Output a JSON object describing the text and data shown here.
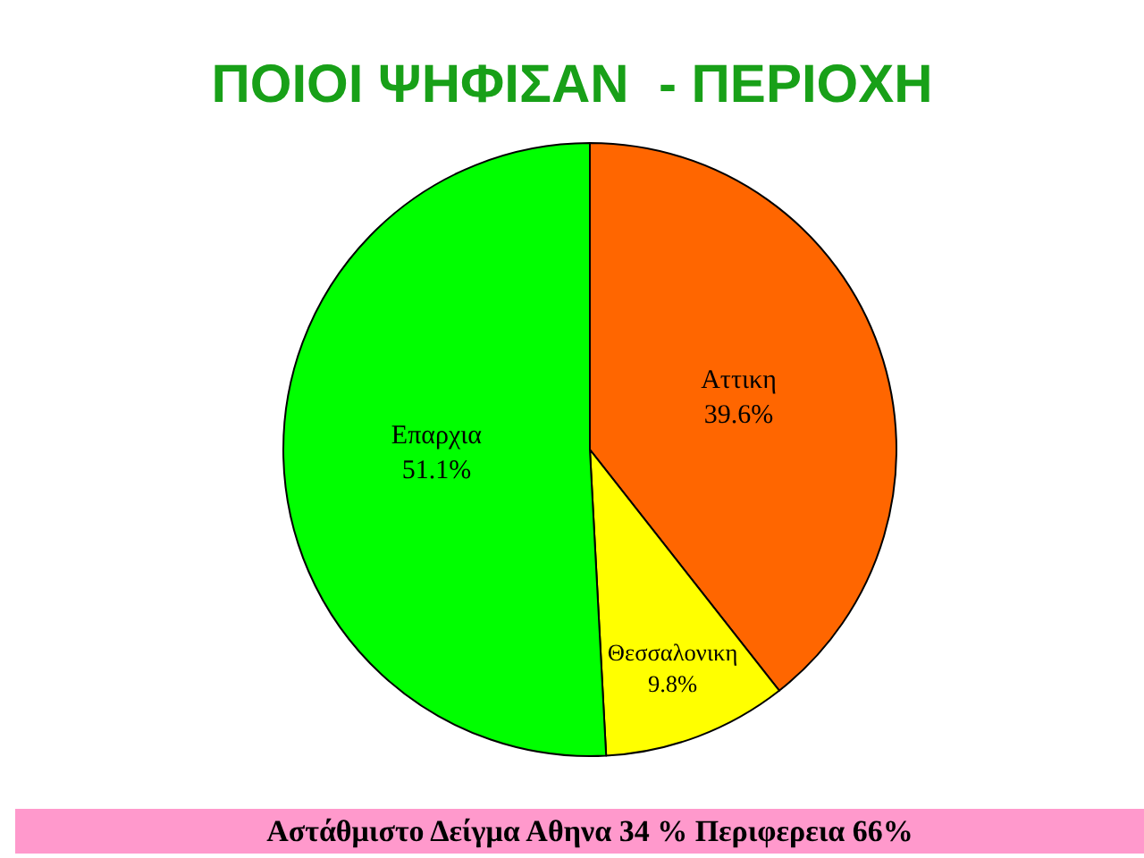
{
  "chart_data": {
    "type": "pie",
    "title": "ΠΟΙΟΙ ΨΗΦΙΣΑΝ  - ΠΕΡΙΟΧΗ",
    "categories": [
      "Αττικη",
      "Θεσσαλονικη",
      "Επαρχια"
    ],
    "values": [
      39.6,
      9.8,
      51.1
    ],
    "value_labels": [
      "39.6%",
      "9.8%",
      "51.1%"
    ],
    "colors": [
      "#ff6600",
      "#ffff00",
      "#00ff00"
    ],
    "legend": false,
    "annotations": [
      "Αστάθμιστο Δείγμα Αθηνα 34 % Περιφερεια 66%"
    ]
  }
}
